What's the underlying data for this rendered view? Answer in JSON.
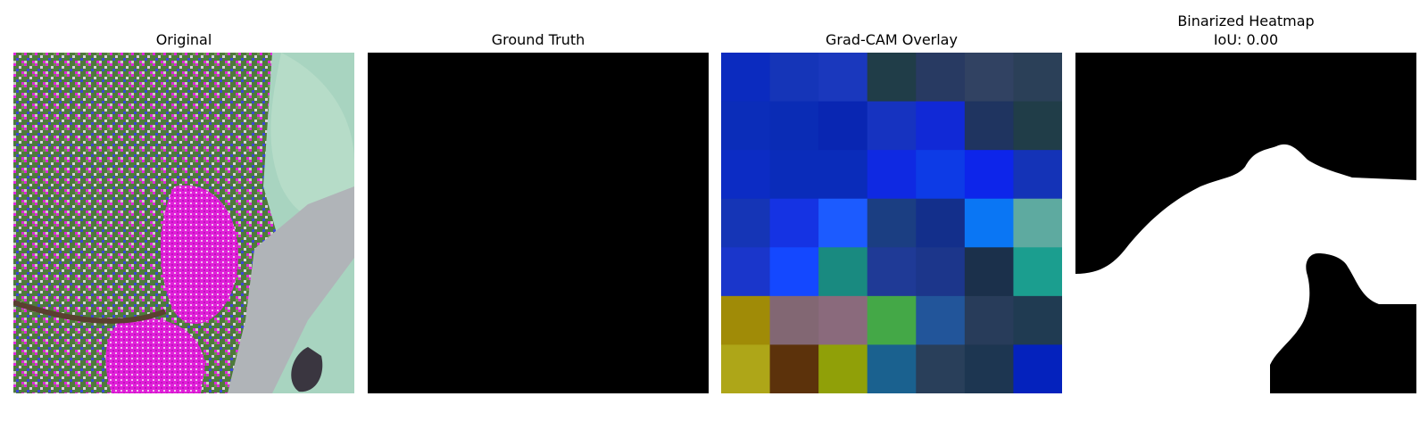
{
  "panels": [
    {
      "title": "Original"
    },
    {
      "title": "Ground Truth"
    },
    {
      "title": "Grad-CAM Overlay"
    },
    {
      "title": "Binarized Heatmap",
      "subtitle": "IoU: 0.00"
    }
  ],
  "gradcam_grid": [
    [
      "#0b2bbf",
      "#1535b8",
      "#1a38bd",
      "#203d48",
      "#283a62",
      "#314262",
      "#2b4058"
    ],
    [
      "#0b2db9",
      "#0a2cb5",
      "#0926b2",
      "#1633c0",
      "#1129d6",
      "#1f3460",
      "#203d48"
    ],
    [
      "#0c2cc4",
      "#0a2cba",
      "#0a2cba",
      "#0f29e2",
      "#0d3be6",
      "#0d25ea",
      "#1433b7"
    ],
    [
      "#1535b6",
      "#1533e3",
      "#1c5bff",
      "#1b3e82",
      "#132f8b",
      "#0a76f4",
      "#5eaaa0"
    ],
    [
      "#1a36cb",
      "#1448ff",
      "#198a80",
      "#1f3a96",
      "#1c368b",
      "#1b304b",
      "#1b9e8f"
    ],
    [
      "#a08b07",
      "#826773",
      "#8a6a7c",
      "#44a847",
      "#22559a",
      "#283c5a",
      "#203b52"
    ],
    [
      "#aea618",
      "#5c320b",
      "#90a008",
      "#1a618f",
      "#293f5a",
      "#1d3651",
      "#0422bd"
    ]
  ],
  "colors": {
    "ground_truth": "#000000",
    "heatmap_foreground": "#ffffff",
    "heatmap_background": "#000000"
  }
}
